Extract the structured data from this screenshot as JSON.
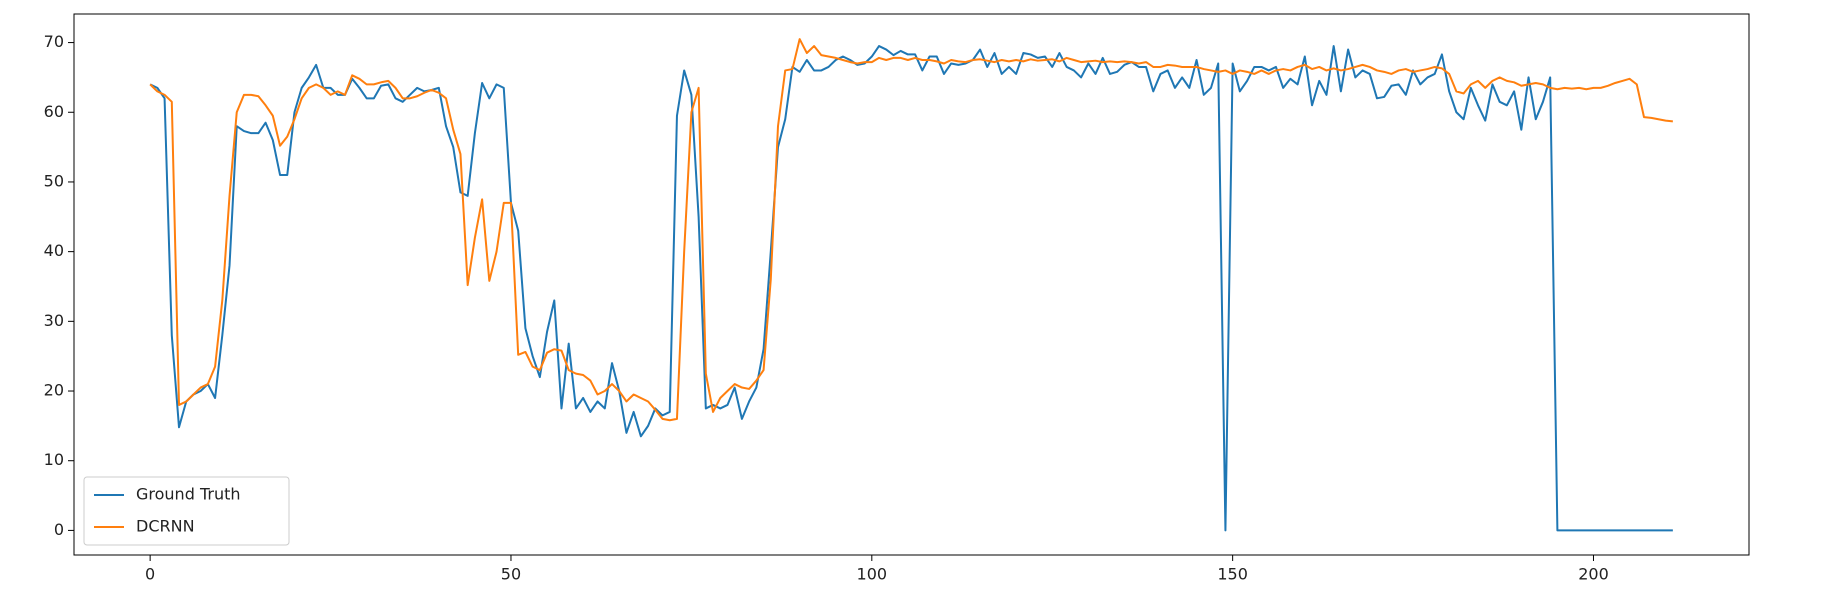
{
  "chart_data": {
    "type": "line",
    "x": [
      0,
      1,
      2,
      3,
      4,
      5,
      6,
      7,
      8,
      9,
      10,
      11,
      12,
      13,
      14,
      15,
      16,
      17,
      18,
      19,
      20,
      21,
      22,
      23,
      24,
      25,
      26,
      27,
      28,
      29,
      30,
      31,
      32,
      33,
      34,
      35,
      36,
      37,
      38,
      39,
      40,
      41,
      42,
      43,
      44,
      45,
      46,
      47,
      48,
      49,
      50,
      51,
      52,
      53,
      54,
      55,
      56,
      57,
      58,
      59,
      60,
      61,
      62,
      63,
      64,
      65,
      66,
      67,
      68,
      69,
      70,
      71,
      72,
      73,
      74,
      75,
      76,
      77,
      78,
      79,
      80,
      81,
      82,
      83,
      84,
      85,
      86,
      87,
      88,
      89,
      90,
      91,
      92,
      93,
      94,
      95,
      96,
      97,
      98,
      99,
      100,
      101,
      102,
      103,
      104,
      105,
      106,
      107,
      108,
      109,
      110,
      111,
      112,
      113,
      114,
      115,
      116,
      117,
      118,
      119,
      120,
      121,
      122,
      123,
      124,
      125,
      126,
      127,
      128,
      129,
      130,
      131,
      132,
      133,
      134,
      135,
      136,
      137,
      138,
      139,
      140,
      141,
      142,
      143,
      144,
      145,
      146,
      147,
      148,
      149,
      150,
      151,
      152,
      153,
      154,
      155,
      156,
      157,
      158,
      159,
      160,
      161,
      162,
      163,
      164,
      165,
      166,
      167,
      168,
      169,
      170,
      171,
      172,
      173,
      174,
      175,
      176,
      177,
      178,
      179,
      180,
      181,
      182,
      183,
      184,
      185,
      186,
      187,
      188,
      189,
      190,
      191,
      192,
      193,
      194,
      195,
      196,
      197,
      198,
      199,
      200,
      201,
      202,
      203,
      204,
      205,
      206,
      207,
      208,
      209,
      210,
      211
    ],
    "series": [
      {
        "name": "Ground Truth",
        "color": "#1f77b4",
        "values": [
          64,
          63.5,
          62,
          28,
          14.8,
          18.5,
          19.5,
          20,
          21,
          19,
          28,
          38,
          58,
          57.3,
          57,
          57,
          58.5,
          56,
          51,
          51,
          60,
          63.5,
          65,
          66.8,
          63.5,
          63.5,
          62.5,
          62.5,
          64.8,
          63.5,
          62,
          62,
          63.8,
          64,
          62,
          61.5,
          62.5,
          63.5,
          63,
          63.2,
          63.5,
          58,
          55,
          48.5,
          48,
          57,
          64.2,
          62,
          64,
          63.5,
          47,
          43,
          29,
          25,
          22,
          28.5,
          33,
          17.5,
          26.8,
          17.5,
          19,
          17,
          18.5,
          17.5,
          24,
          20,
          14,
          17,
          13.5,
          15,
          17.5,
          16.5,
          17,
          59.5,
          66,
          62.5,
          45,
          17.5,
          18,
          17.5,
          18,
          20.5,
          16,
          18.5,
          20.5,
          26,
          40,
          55,
          59,
          66.5,
          65.8,
          67.5,
          66,
          66,
          66.5,
          67.5,
          68,
          67.5,
          66.8,
          67,
          68,
          69.5,
          69,
          68.2,
          68.8,
          68.3,
          68.3,
          66,
          68,
          68,
          65.5,
          67,
          66.8,
          67,
          67.5,
          69,
          66.5,
          68.5,
          65.5,
          66.5,
          65.5,
          68.5,
          68.3,
          67.8,
          68,
          66.5,
          68.5,
          66.5,
          66,
          65,
          67,
          65.5,
          67.8,
          65.5,
          65.8,
          66.8,
          67.2,
          66.5,
          66.5,
          63,
          65.5,
          66,
          63.5,
          65,
          63.5,
          67.5,
          62.5,
          63.5,
          67,
          0,
          67,
          63,
          64.5,
          66.5,
          66.5,
          66,
          66.5,
          63.5,
          64.8,
          64,
          68,
          61,
          64.5,
          62.5,
          69.5,
          63,
          69,
          65,
          66,
          65.5,
          62,
          62.2,
          63.8,
          64,
          62.5,
          66,
          64,
          65,
          65.5,
          68.3,
          63,
          60,
          59,
          63.5,
          61,
          58.8,
          64,
          61.5,
          61,
          63,
          57.5,
          65,
          59,
          61.5,
          65,
          0,
          0,
          0,
          0,
          0,
          0,
          0,
          0,
          0,
          0,
          0,
          0,
          0,
          0,
          0,
          0,
          0
        ]
      },
      {
        "name": "DCRNN",
        "color": "#ff7f0e",
        "values": [
          64,
          63,
          62.5,
          61.5,
          18,
          18.5,
          19.5,
          20.5,
          21,
          23.5,
          33,
          48,
          60,
          62.5,
          62.5,
          62.3,
          61,
          59.5,
          55.2,
          56.5,
          59,
          62,
          63.5,
          64,
          63.5,
          62.5,
          63,
          62.5,
          65.3,
          64.8,
          64,
          64,
          64.3,
          64.5,
          63.5,
          62,
          62,
          62.3,
          62.8,
          63.2,
          62.8,
          62,
          57.5,
          54,
          35.2,
          42,
          47.5,
          35.8,
          40,
          47,
          47,
          25.2,
          25.6,
          23.5,
          23,
          25.5,
          26,
          25.8,
          23,
          22.5,
          22.3,
          21.5,
          19.5,
          20,
          21,
          20,
          18.5,
          19.5,
          19,
          18.5,
          17.3,
          16,
          15.8,
          16,
          40,
          60,
          63.5,
          22.5,
          17,
          19,
          20,
          21,
          20.5,
          20.3,
          21.5,
          23,
          36,
          58,
          66,
          66.2,
          70.5,
          68.5,
          69.5,
          68.2,
          68,
          67.8,
          67.5,
          67.2,
          67,
          67.2,
          67.2,
          67.8,
          67.5,
          67.8,
          67.8,
          67.5,
          67.8,
          67.5,
          67.5,
          67.3,
          67,
          67.5,
          67.3,
          67.2,
          67.5,
          67.6,
          67.4,
          67.2,
          67.5,
          67.3,
          67.5,
          67.3,
          67.6,
          67.4,
          67.5,
          67.6,
          67.3,
          67.8,
          67.5,
          67.2,
          67.3,
          67.4,
          67.2,
          67.3,
          67.2,
          67.3,
          67.2,
          67,
          67.2,
          66.5,
          66.5,
          66.8,
          66.7,
          66.5,
          66.5,
          66.5,
          66.2,
          66,
          65.8,
          66,
          65.5,
          66,
          65.8,
          65.5,
          66,
          65.5,
          66,
          66.2,
          66,
          66.5,
          66.8,
          66.2,
          66.5,
          66,
          66.3,
          66,
          66.2,
          66.5,
          66.8,
          66.5,
          66,
          65.8,
          65.5,
          66,
          66.2,
          65.8,
          66,
          66.2,
          66.5,
          66.3,
          65.5,
          63,
          62.7,
          64,
          64.5,
          63.5,
          64.5,
          65,
          64.5,
          64.3,
          63.8,
          64,
          64.2,
          64,
          63.5,
          63.3,
          63.5,
          63.4,
          63.5,
          63.3,
          63.5,
          63.5,
          63.8,
          64.2,
          64.5,
          64.8,
          64,
          59.3,
          59.2,
          59,
          58.8,
          58.7
        ]
      }
    ],
    "xlim": [
      -10.55,
      221.55
    ],
    "xticks": [
      0,
      50,
      100,
      150,
      200
    ],
    "ylim": [
      -3.53,
      74.1
    ],
    "yticks": [
      0,
      10,
      20,
      30,
      40,
      50,
      60,
      70
    ],
    "legend": "lower left"
  }
}
